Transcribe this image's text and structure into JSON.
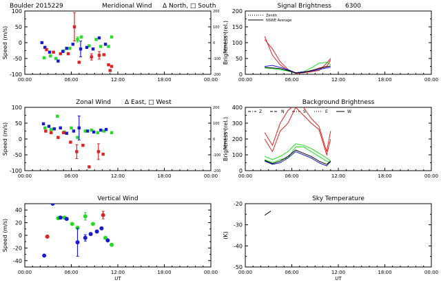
{
  "figure": {
    "station": "Boulder",
    "date": "2015229",
    "wavelength": "6300"
  },
  "colors": {
    "green": "#22dd22",
    "blue": "#1a1ad0",
    "red": "#dd2222",
    "black": "#000000"
  },
  "chart_data": [
    {
      "id": "meridional",
      "type": "scatter",
      "title": "Meridional Wind",
      "title_annotation": "Δ North, □ South",
      "header_prefix": "Boulder  2015229",
      "ylabel": "Speed (m/s)",
      "ylim": [
        -100,
        100
      ],
      "yticks": [
        -100,
        -50,
        0,
        50,
        100
      ],
      "right_axis": {
        "ylabel": "Speed (m/s)",
        "ticks": [
          -200,
          -100,
          0,
          100,
          200
        ]
      },
      "xlim": [
        0,
        24
      ],
      "xticks": [
        "00:00",
        "06:00",
        "12:00",
        "18:00",
        "00:00"
      ],
      "series": [
        {
          "color": "green",
          "marker": "square",
          "points": [
            [
              2.5,
              -48,
              0
            ],
            [
              3.3,
              -42,
              0
            ],
            [
              4.0,
              -50,
              0
            ],
            [
              5.0,
              -26,
              0
            ],
            [
              5.8,
              -18,
              0
            ],
            [
              6.8,
              10,
              8
            ],
            [
              7.3,
              18,
              0
            ],
            [
              8.3,
              -10,
              0
            ],
            [
              9.2,
              10,
              0
            ],
            [
              9.8,
              -12,
              0
            ],
            [
              10.8,
              -12,
              0
            ],
            [
              11.2,
              18,
              0
            ]
          ]
        },
        {
          "color": "blue",
          "marker": "square",
          "points": [
            [
              2.2,
              0,
              0
            ],
            [
              2.6,
              -15,
              0
            ],
            [
              3.2,
              -30,
              0
            ],
            [
              4.3,
              -58,
              0
            ],
            [
              4.9,
              -28,
              0
            ],
            [
              5.4,
              -18,
              0
            ],
            [
              6.2,
              -5,
              0
            ],
            [
              7.2,
              -20,
              25
            ],
            [
              8.0,
              -15,
              0
            ],
            [
              8.8,
              -20,
              0
            ],
            [
              9.6,
              15,
              0
            ],
            [
              10.4,
              -5,
              0
            ]
          ]
        },
        {
          "color": "red",
          "marker": "square",
          "points": [
            [
              2.8,
              -22,
              0
            ],
            [
              3.7,
              -30,
              0
            ],
            [
              4.6,
              -35,
              0
            ],
            [
              5.6,
              -35,
              0
            ],
            [
              6.4,
              50,
              45
            ],
            [
              7.0,
              -62,
              0
            ],
            [
              8.6,
              -45,
              10
            ],
            [
              9.6,
              -40,
              12
            ],
            [
              10.2,
              -38,
              0
            ],
            [
              10.8,
              -70,
              0
            ],
            [
              11.0,
              -88,
              0
            ],
            [
              11.2,
              -75,
              0
            ]
          ]
        }
      ]
    },
    {
      "id": "zonal",
      "type": "scatter",
      "title": "Zonal Wind",
      "title_annotation": "Δ East, □ West",
      "ylabel": "Speed (m/s)",
      "ylim": [
        -100,
        100
      ],
      "yticks": [
        -100,
        -50,
        0,
        50,
        100
      ],
      "right_axis": {
        "ylabel": "Speed (m/s)",
        "ticks": [
          -200,
          -100,
          0,
          100,
          200
        ]
      },
      "xlim": [
        0,
        24
      ],
      "xticks": [
        "00:00",
        "06:00",
        "12:00",
        "18:00",
        "00:00"
      ],
      "series": [
        {
          "color": "green",
          "marker": "square",
          "points": [
            [
              2.6,
              35,
              0
            ],
            [
              3.4,
              30,
              0
            ],
            [
              4.2,
              72,
              0
            ],
            [
              5.1,
              22,
              0
            ],
            [
              6.0,
              35,
              0
            ],
            [
              6.8,
              5,
              0
            ],
            [
              7.8,
              25,
              0
            ],
            [
              8.6,
              28,
              0
            ],
            [
              9.4,
              20,
              0
            ],
            [
              10.2,
              25,
              0
            ],
            [
              11.2,
              20,
              0
            ]
          ]
        },
        {
          "color": "blue",
          "marker": "square",
          "points": [
            [
              2.4,
              48,
              0
            ],
            [
              3.1,
              40,
              0
            ],
            [
              3.8,
              32,
              0
            ],
            [
              4.6,
              35,
              0
            ],
            [
              5.4,
              18,
              0
            ],
            [
              6.3,
              25,
              0
            ],
            [
              7.0,
              35,
              38
            ],
            [
              8.1,
              25,
              0
            ],
            [
              8.9,
              22,
              0
            ],
            [
              9.8,
              28,
              0
            ],
            [
              10.5,
              30,
              0
            ]
          ]
        },
        {
          "color": "red",
          "marker": "square",
          "points": [
            [
              2.7,
              25,
              0
            ],
            [
              3.4,
              20,
              0
            ],
            [
              4.3,
              5,
              0
            ],
            [
              5.0,
              20,
              0
            ],
            [
              5.9,
              -10,
              0
            ],
            [
              6.7,
              -40,
              22
            ],
            [
              7.5,
              -20,
              0
            ],
            [
              8.3,
              -88,
              0
            ],
            [
              9.5,
              -40,
              25
            ],
            [
              10.1,
              -48,
              0
            ]
          ]
        }
      ]
    },
    {
      "id": "vertical",
      "type": "scatter",
      "title": "Vertical Wind",
      "ylabel": "Speed (m/s)",
      "ylim": [
        -50,
        50
      ],
      "yticks": [
        -40,
        -20,
        0,
        20,
        40
      ],
      "xlim": [
        0,
        24
      ],
      "xticks": [
        "00:00",
        "06:00",
        "12:00",
        "18:00",
        "00:00"
      ],
      "xlabel": "UT",
      "series": [
        {
          "color": "green",
          "marker": "circle",
          "points": [
            [
              4.3,
              27,
              0
            ],
            [
              5.1,
              28,
              0
            ],
            [
              6.1,
              18,
              0
            ],
            [
              6.8,
              12,
              0
            ],
            [
              7.8,
              30,
              6
            ],
            [
              8.8,
              18,
              0
            ],
            [
              10.4,
              -4,
              0
            ],
            [
              11.2,
              -15,
              0
            ]
          ]
        },
        {
          "color": "blue",
          "marker": "circle",
          "points": [
            [
              2.5,
              -32,
              0
            ],
            [
              3.6,
              50,
              0
            ],
            [
              4.6,
              28,
              0
            ],
            [
              5.4,
              26,
              0
            ],
            [
              6.8,
              -11,
              22
            ],
            [
              7.8,
              -4,
              5
            ],
            [
              8.5,
              2,
              0
            ],
            [
              9.3,
              6,
              0
            ],
            [
              9.9,
              11,
              0
            ],
            [
              10.7,
              -8,
              0
            ]
          ]
        },
        {
          "color": "red",
          "marker": "circle",
          "points": [
            [
              2.9,
              -2,
              0
            ],
            [
              10.1,
              32,
              6
            ]
          ]
        }
      ]
    },
    {
      "id": "signal",
      "type": "line",
      "title": "Signal Brightness",
      "title_annotation": "6300",
      "ylabel": "Brightness (rel.)",
      "ylim": [
        0,
        200
      ],
      "yticks": [
        0,
        50,
        100,
        150,
        200
      ],
      "xlim": [
        0,
        24
      ],
      "xticks": [
        "00:00",
        "06:00",
        "12:00",
        "18:00",
        "00:00"
      ],
      "legend": [
        {
          "label": "Zenith",
          "style": "dotted"
        },
        {
          "label": "NSWE Average",
          "style": "solid"
        }
      ],
      "series": [
        {
          "color": "red",
          "x": [
            2.5,
            3.5,
            4.5,
            5.5,
            6.5,
            7.5,
            8.5,
            9.5,
            10.5,
            11.0
          ],
          "y": [
            120,
            60,
            30,
            12,
            5,
            5,
            10,
            20,
            25,
            45
          ]
        },
        {
          "color": "red",
          "x": [
            2.5,
            3.5,
            4.5,
            5.5,
            6.5,
            7.5,
            8.5,
            9.5,
            10.5,
            11.0
          ],
          "y": [
            110,
            80,
            40,
            15,
            3,
            5,
            8,
            12,
            35,
            50
          ]
        },
        {
          "color": "green",
          "x": [
            2.5,
            3.5,
            4.5,
            5.5,
            6.5,
            7.5,
            8.5,
            9.5,
            10.5,
            11.0
          ],
          "y": [
            20,
            18,
            15,
            10,
            5,
            8,
            20,
            35,
            38,
            30
          ]
        },
        {
          "color": "blue",
          "x": [
            2.5,
            3.5,
            4.5,
            5.5,
            6.5,
            7.5,
            8.5,
            9.5,
            10.5,
            11.0
          ],
          "y": [
            25,
            28,
            22,
            15,
            5,
            8,
            10,
            15,
            20,
            22
          ]
        },
        {
          "color": "black",
          "x": [
            2.5,
            3.5,
            4.5,
            5.5,
            6.5,
            7.5,
            8.5,
            9.5,
            10.5,
            11.0
          ],
          "y": [
            22,
            20,
            18,
            12,
            4,
            6,
            12,
            18,
            24,
            26
          ]
        }
      ]
    },
    {
      "id": "background",
      "type": "line",
      "title": "Background Brightness",
      "ylabel": "Brightness (rel.)",
      "ylim": [
        0,
        400
      ],
      "yticks": [
        0,
        100,
        200,
        300,
        400
      ],
      "xlim": [
        0,
        24
      ],
      "xticks": [
        "00:00",
        "06:00",
        "12:00",
        "18:00",
        "00:00"
      ],
      "legend": [
        {
          "label": "Z",
          "style": "dashdot"
        },
        {
          "label": "N",
          "style": "dashed"
        },
        {
          "label": "S",
          "style": "dashdot"
        },
        {
          "label": "E",
          "style": "dotted"
        },
        {
          "label": "W",
          "style": "solid"
        }
      ],
      "series": [
        {
          "color": "red",
          "x": [
            2.5,
            3.5,
            4.5,
            5.5,
            6.5,
            7.5,
            8.5,
            9.5,
            10.5,
            11.0
          ],
          "y": [
            200,
            120,
            250,
            300,
            400,
            350,
            300,
            260,
            100,
            200
          ]
        },
        {
          "color": "red",
          "x": [
            2.5,
            3.5,
            4.5,
            5.5,
            6.5,
            7.5,
            8.5,
            9.5,
            10.5,
            11.0
          ],
          "y": [
            240,
            160,
            300,
            380,
            420,
            400,
            330,
            280,
            120,
            250
          ]
        },
        {
          "color": "green",
          "x": [
            2.5,
            3.5,
            4.5,
            5.5,
            6.5,
            7.5,
            8.5,
            9.5,
            10.5,
            11.0
          ],
          "y": [
            70,
            50,
            70,
            80,
            150,
            150,
            120,
            90,
            60,
            50
          ]
        },
        {
          "color": "green",
          "x": [
            2.5,
            3.5,
            4.5,
            5.5,
            6.5,
            7.5,
            8.5,
            9.5,
            10.5,
            11.0
          ],
          "y": [
            90,
            70,
            90,
            120,
            170,
            160,
            140,
            110,
            80,
            60
          ]
        },
        {
          "color": "blue",
          "x": [
            2.5,
            3.5,
            4.5,
            5.5,
            6.5,
            7.5,
            8.5,
            9.5,
            10.5,
            11.0
          ],
          "y": [
            60,
            40,
            50,
            80,
            120,
            100,
            80,
            50,
            30,
            60
          ]
        },
        {
          "color": "black",
          "x": [
            2.5,
            3.5,
            4.5,
            5.5,
            6.5,
            7.5,
            8.5,
            9.5,
            10.5,
            11.0
          ],
          "y": [
            65,
            45,
            60,
            90,
            130,
            110,
            90,
            60,
            40,
            60
          ]
        }
      ]
    },
    {
      "id": "skytemp",
      "type": "line",
      "title": "Sky Temperature",
      "ylabel": "(K)",
      "ylim": [
        -50,
        -20
      ],
      "yticks": [
        -50,
        -40,
        -30,
        -20
      ],
      "xlim": [
        0,
        24
      ],
      "xticks": [
        "00:00",
        "06:00",
        "12:00",
        "18:00",
        "00:00"
      ],
      "xlabel": "UT",
      "series": [
        {
          "color": "black",
          "x": [
            2.5,
            3.3
          ],
          "y": [
            -25.5,
            -23.5
          ]
        }
      ]
    }
  ]
}
